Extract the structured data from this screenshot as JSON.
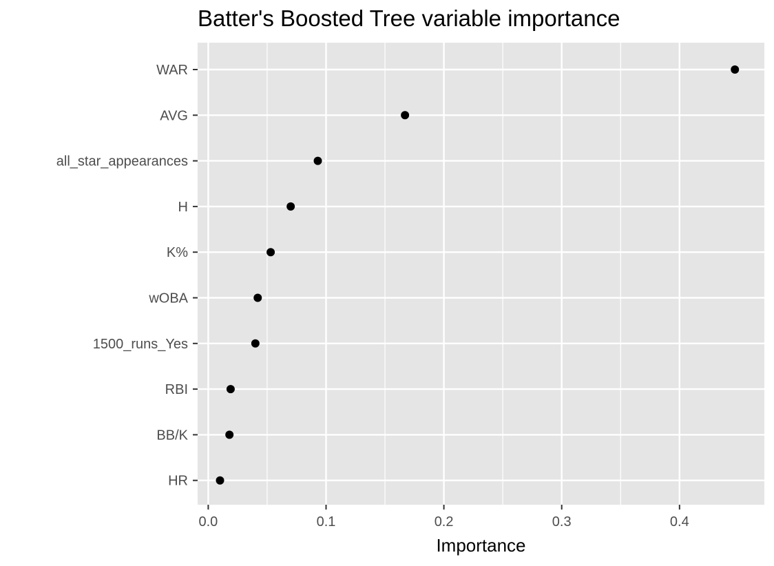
{
  "chart_data": {
    "type": "scatter",
    "title": "Batter's Boosted Tree variable importance",
    "xlabel": "Importance",
    "ylabel": "",
    "xlim": [
      -0.009,
      0.472
    ],
    "x_ticks": [
      0.0,
      0.1,
      0.2,
      0.3,
      0.4
    ],
    "x_tick_labels": [
      "0.0",
      "0.1",
      "0.2",
      "0.3",
      "0.4"
    ],
    "grid": true,
    "categories": [
      "WAR",
      "AVG",
      "all_star_appearances",
      "H",
      "K%",
      "wOBA",
      "1500_runs_Yes",
      "RBI",
      "BB/K",
      "HR"
    ],
    "values": [
      0.447,
      0.167,
      0.093,
      0.07,
      0.053,
      0.042,
      0.04,
      0.019,
      0.018,
      0.01
    ],
    "colors": {
      "panel": "#e5e5e5",
      "grid": "#ffffff",
      "point": "#000000",
      "tick_text": "#4d4d4d"
    }
  }
}
